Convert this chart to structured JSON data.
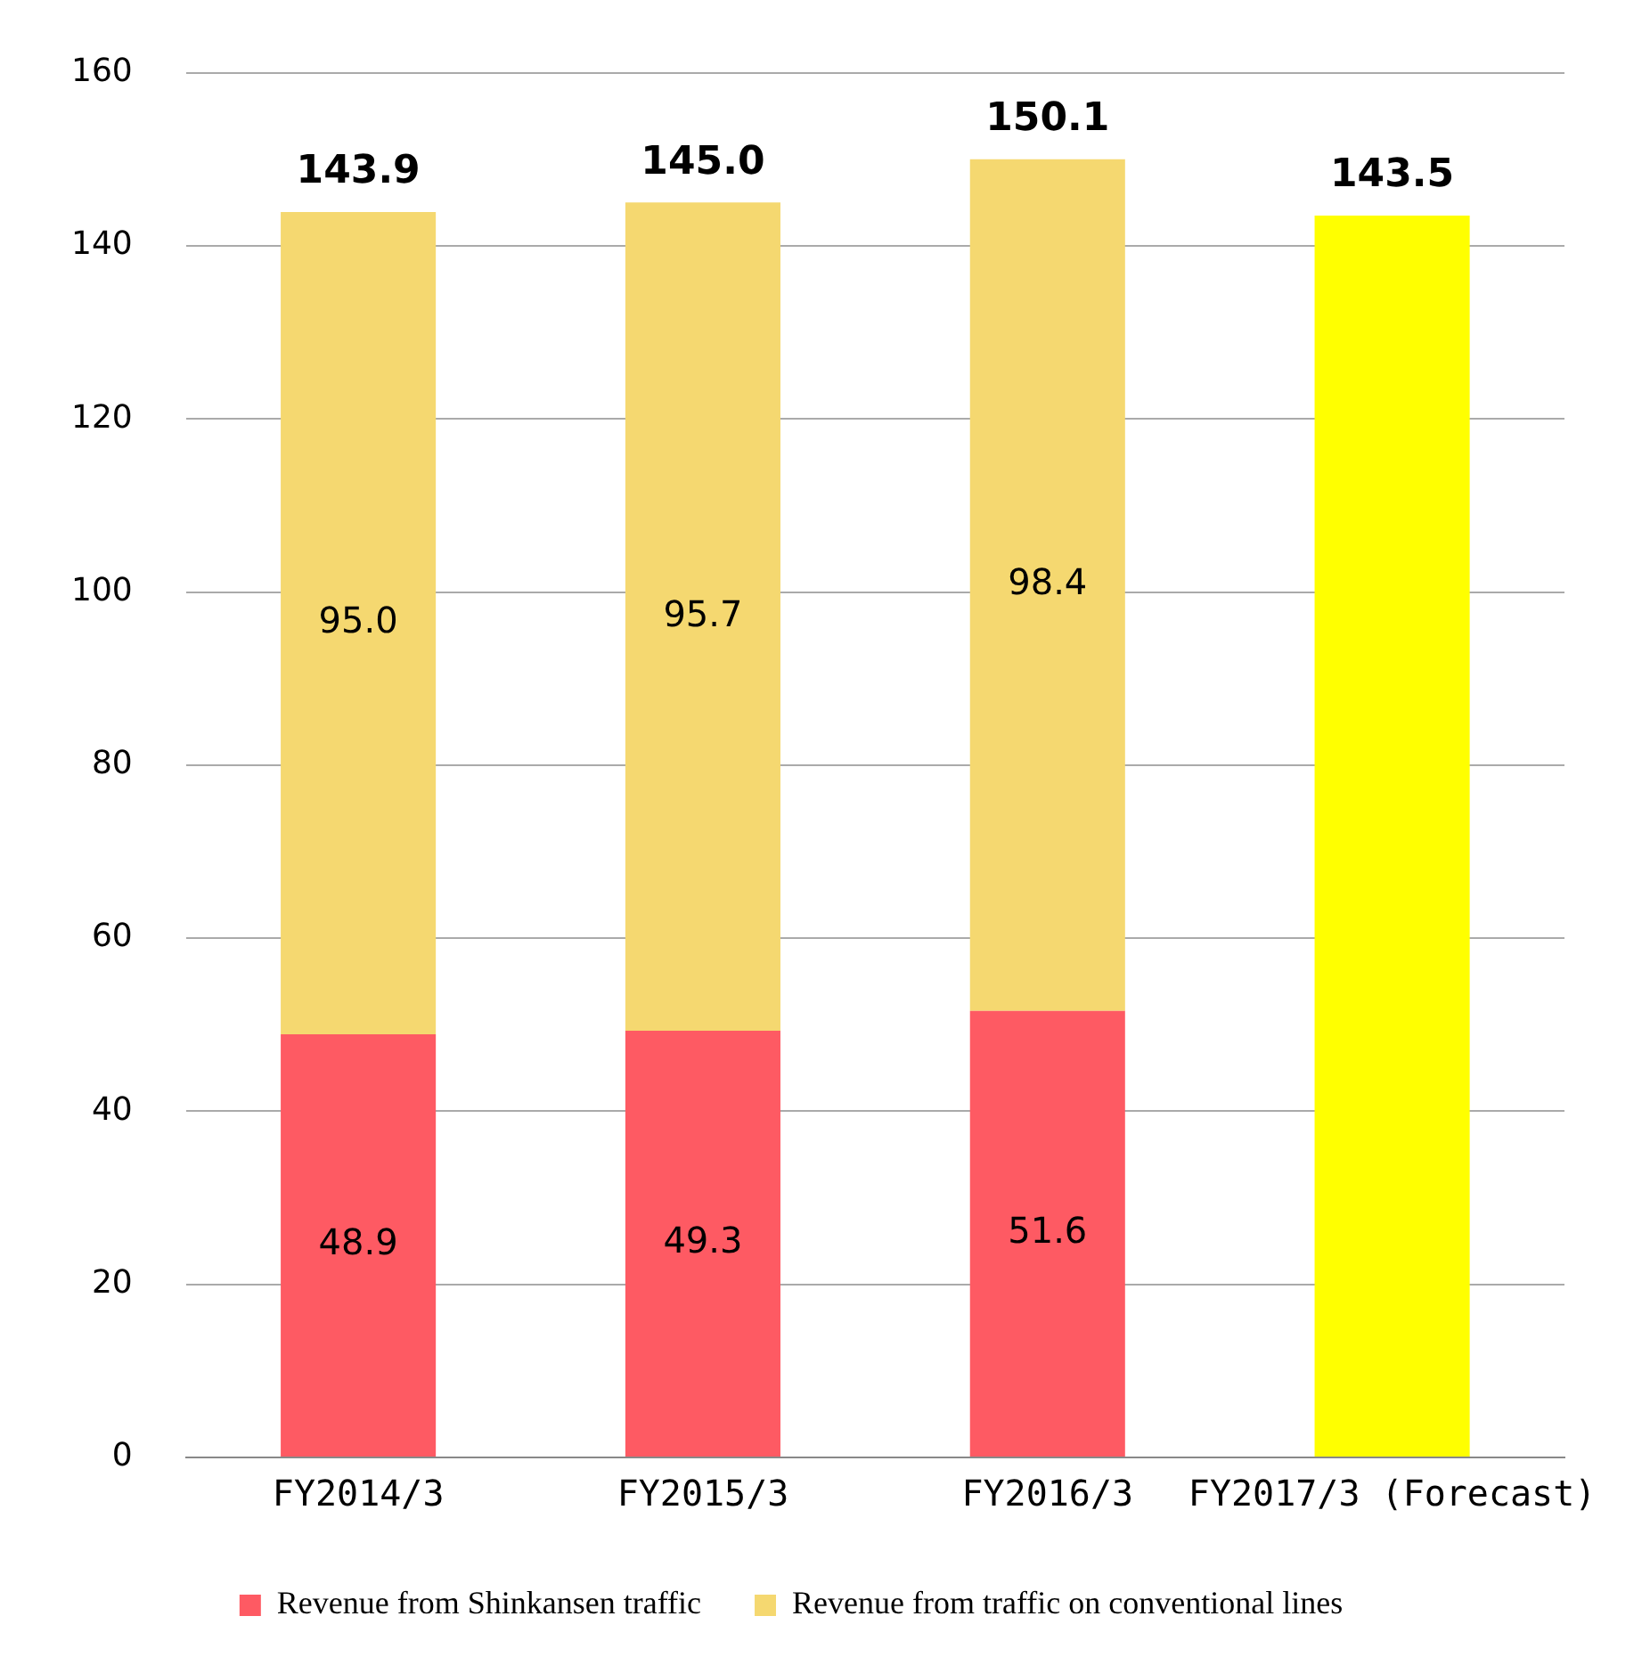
{
  "chart_data": {
    "type": "bar",
    "stacked": true,
    "categories": [
      "FY2014/3",
      "FY2015/3",
      "FY2016/3",
      "FY2017/3 (Forecast)"
    ],
    "series": [
      {
        "name": "Revenue from Shinkansen traffic",
        "color": "#fe5a63",
        "values": [
          48.9,
          49.3,
          51.6,
          null
        ],
        "value_labels": [
          "48.9",
          "49.3",
          "51.6",
          null
        ]
      },
      {
        "name": "Revenue from traffic on conventional lines",
        "color": "#f5d870",
        "values": [
          95.0,
          95.7,
          98.4,
          null
        ],
        "value_labels": [
          "95.0",
          "95.7",
          "98.4",
          null
        ]
      },
      {
        "color": "#ffff00",
        "values": [
          null,
          null,
          null,
          143.5
        ]
      }
    ],
    "totals": [
      "143.9",
      "145.0",
      "150.1",
      "143.5"
    ],
    "ylim": [
      0,
      160
    ],
    "yticks": [
      0,
      20,
      40,
      60,
      80,
      100,
      120,
      140,
      160
    ],
    "grid": "y",
    "legend": "bottom"
  }
}
